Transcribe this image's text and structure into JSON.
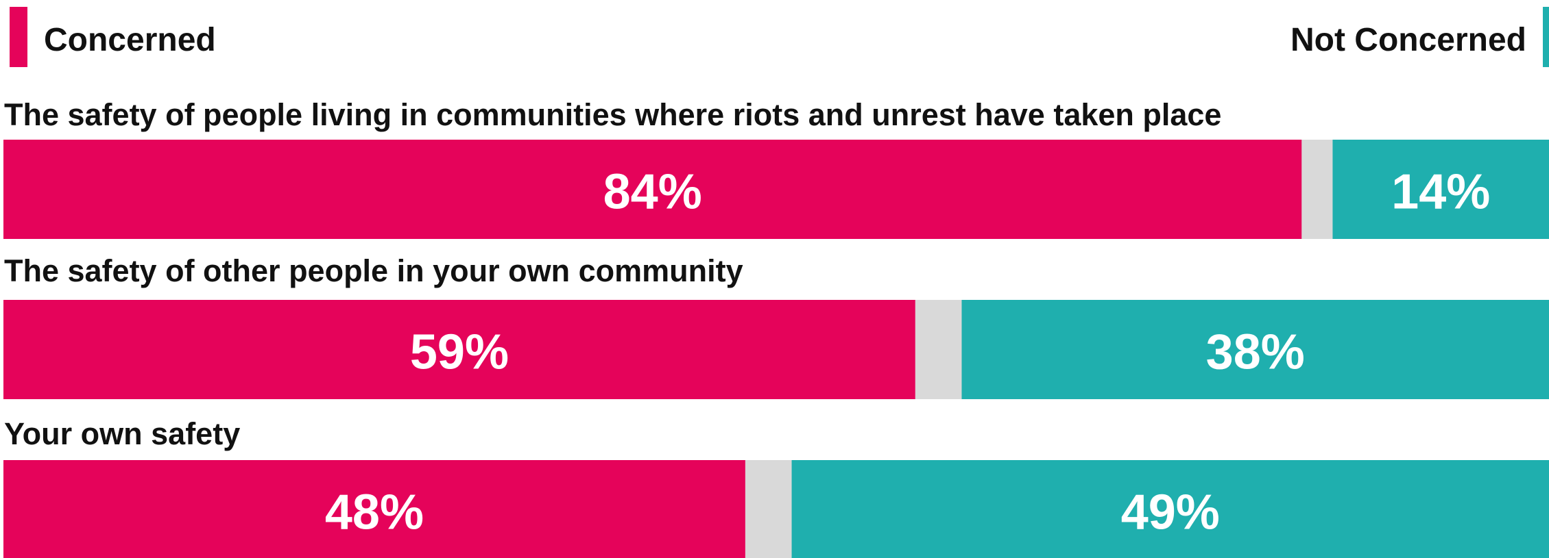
{
  "chart_data": {
    "type": "bar",
    "orientation": "horizontal",
    "stacked": true,
    "legend_position": "top",
    "categories": [
      "The safety of people living in communities where riots and unrest have taken place",
      "The safety of other people in your own community",
      "Your own safety"
    ],
    "series": [
      {
        "name": "Concerned",
        "values": [
          84,
          59,
          48
        ],
        "labels": [
          "84%",
          "59%",
          "48%"
        ],
        "color": "#e5035a"
      },
      {
        "name": "Not Concerned",
        "values": [
          14,
          38,
          49
        ],
        "labels": [
          "14%",
          "38%",
          "49%"
        ],
        "color": "#1fafae"
      }
    ],
    "remainder_color": "#d9d9d9",
    "xlim": [
      0,
      100
    ]
  }
}
